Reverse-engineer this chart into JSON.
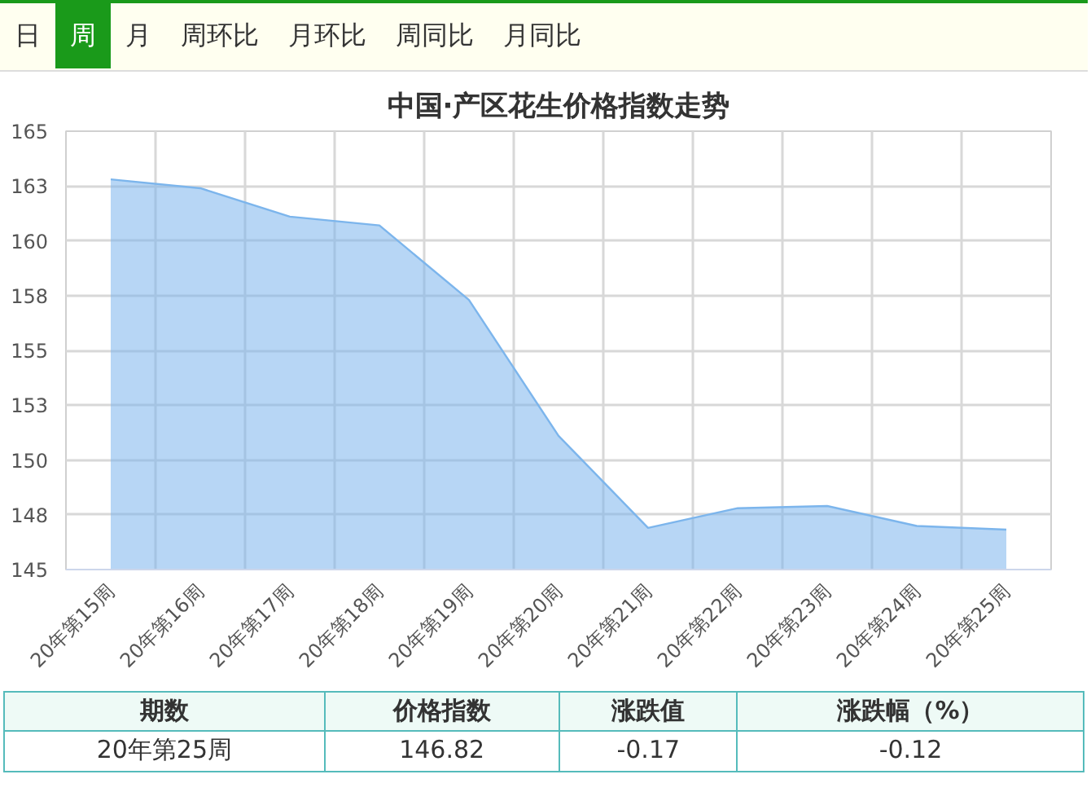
{
  "chart_data": {
    "type": "area",
    "title": "中国·产区花生价格指数走势",
    "categories": [
      "20年第15周",
      "20年第16周",
      "20年第17周",
      "20年第18周",
      "20年第19周",
      "20年第20周",
      "20年第21周",
      "20年第22周",
      "20年第23周",
      "20年第24周",
      "20年第25周"
    ],
    "series": [
      {
        "color": "#7cb5ec",
        "values": [
          162.8,
          162.4,
          161.1,
          160.7,
          157.3,
          151.1,
          146.9,
          147.8,
          147.9,
          146.99,
          146.82
        ]
      }
    ],
    "ylim": [
      145,
      165
    ],
    "yticks": [
      145,
      {
        "value": 147.5,
        "label": "148"
      },
      150,
      {
        "value": 152.5,
        "label": "153"
      },
      155,
      {
        "value": 157.5,
        "label": "158"
      },
      160,
      {
        "value": 162.5,
        "label": "163"
      },
      165
    ],
    "grid": true,
    "annotations": [
      "日",
      "周",
      "月",
      "周环比",
      "月环比",
      "周同比",
      "月同比",
      "期数",
      "价格指数",
      "涨跌值",
      "涨跌幅（%）",
      "20年第25周",
      "146.82",
      "-0.17",
      "-0.12"
    ]
  }
}
